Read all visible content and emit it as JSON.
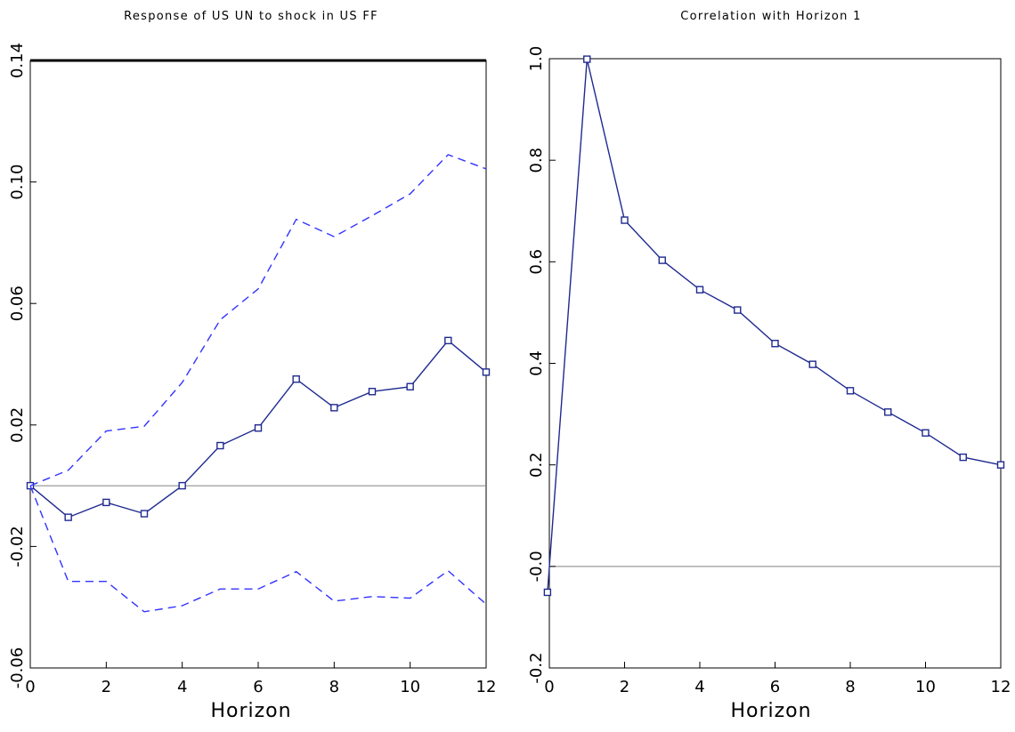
{
  "chart_data": [
    {
      "type": "line",
      "title": "Response of US UN to shock in US FF",
      "xlabel": "Horizon",
      "ylabel": "",
      "xlim": [
        0,
        12
      ],
      "ylim": [
        -0.06,
        0.14
      ],
      "xticks": [
        0,
        2,
        4,
        6,
        8,
        10,
        12
      ],
      "xtick_labels": [
        "0",
        "2",
        "4",
        "6",
        "8",
        "10",
        "12"
      ],
      "yticks": [
        -0.06,
        -0.02,
        0.02,
        0.06,
        0.1,
        0.14
      ],
      "ytick_labels": [
        "-0.06",
        "-0.02",
        "0.02",
        "0.06",
        "0.10",
        "0.14"
      ],
      "reference_line": 0,
      "grid": false,
      "colors": {
        "main": "#1f2a8f",
        "band": "#3333ff",
        "zero": "#808080"
      },
      "x": [
        0,
        1,
        2,
        3,
        4,
        5,
        6,
        7,
        8,
        9,
        10,
        11,
        12
      ],
      "series": [
        {
          "role": "estimate",
          "style": "solid-with-square-markers",
          "values": [
            0.0,
            -0.0104,
            -0.0055,
            -0.0092,
            0.0,
            0.0132,
            0.019,
            0.0351,
            0.0257,
            0.031,
            0.0326,
            0.0478,
            0.0374
          ]
        },
        {
          "role": "upper-band",
          "style": "dashed",
          "values": [
            0.0,
            0.0051,
            0.018,
            0.0196,
            0.034,
            0.0546,
            0.0648,
            0.0877,
            0.082,
            0.0889,
            0.0961,
            0.109,
            0.1043
          ]
        },
        {
          "role": "lower-band",
          "style": "dashed",
          "values": [
            0.0,
            -0.0315,
            -0.0315,
            -0.0415,
            -0.0395,
            -0.034,
            -0.034,
            -0.0283,
            -0.038,
            -0.0365,
            -0.037,
            -0.028,
            -0.039
          ]
        }
      ]
    },
    {
      "type": "line",
      "title": "Correlation with Horizon 1",
      "xlabel": "Horizon",
      "ylabel": "",
      "xlim": [
        0,
        12
      ],
      "ylim": [
        -0.2,
        1.0
      ],
      "xticks": [
        0,
        2,
        4,
        6,
        8,
        10,
        12
      ],
      "xtick_labels": [
        "0",
        "2",
        "4",
        "6",
        "8",
        "10",
        "12"
      ],
      "yticks": [
        -0.2,
        0.0,
        0.2,
        0.4,
        0.6,
        0.8,
        1.0
      ],
      "ytick_labels": [
        "-0.2",
        "-0.0",
        "0.2",
        "0.4",
        "0.6",
        "0.8",
        "1.0"
      ],
      "reference_line": 0,
      "grid": false,
      "colors": {
        "main": "#1f2a8f",
        "zero": "#808080"
      },
      "x": [
        -0.05,
        1,
        2,
        3,
        4,
        5,
        6,
        7,
        8,
        9,
        10,
        11,
        12
      ],
      "series": [
        {
          "role": "estimate",
          "style": "solid-with-square-markers",
          "values": [
            -0.051,
            0.999,
            0.682,
            0.603,
            0.545,
            0.505,
            0.439,
            0.398,
            0.346,
            0.304,
            0.263,
            0.215,
            0.2
          ]
        }
      ]
    }
  ]
}
